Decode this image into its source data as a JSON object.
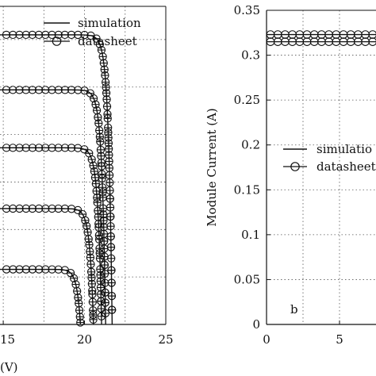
{
  "chart_data": [
    {
      "type": "line",
      "panel": "a",
      "xlabel": "(V)",
      "ylabel": "",
      "xlim": [
        14.8,
        25
      ],
      "ylim": [
        0,
        0.335
      ],
      "xticks": [
        15,
        20,
        25
      ],
      "xtick_labels": [
        "15",
        "20",
        "25"
      ],
      "grid": true,
      "legend": {
        "position": "top-right",
        "entries": [
          {
            "label": "simulation",
            "marker": "line"
          },
          {
            "label": "datasheet",
            "marker": "circle-line"
          }
        ]
      },
      "series": [
        {
          "Isc": 0.305,
          "Voc": 21.7,
          "k": 4.5
        },
        {
          "Isc": 0.247,
          "Voc": 21.3,
          "k": 4.5
        },
        {
          "Isc": 0.186,
          "Voc": 21.05,
          "k": 4.5
        },
        {
          "Isc": 0.122,
          "Voc": 20.55,
          "k": 4.5
        },
        {
          "Isc": 0.058,
          "Voc": 19.75,
          "k": 4.5
        }
      ]
    },
    {
      "type": "line",
      "panel": "b",
      "panel_label": "b",
      "xlabel": "",
      "ylabel": "Module Current (A)",
      "xlim": [
        0,
        10
      ],
      "ylim": [
        0,
        0.35
      ],
      "xticks": [
        0,
        5
      ],
      "xtick_labels": [
        "0",
        "5"
      ],
      "yticks": [
        0,
        0.05,
        0.1,
        0.15,
        0.2,
        0.25,
        0.3,
        0.35
      ],
      "ytick_labels": [
        "0",
        "0.05",
        "0.1",
        "0.15",
        "0.2",
        "0.25",
        "0.3",
        "0.35"
      ],
      "grid": true,
      "legend": {
        "position": "center-right",
        "entries": [
          {
            "label": "simulatio",
            "marker": "line"
          },
          {
            "label": "datasheet",
            "marker": "circle-line"
          }
        ]
      },
      "series": [
        {
          "values": 0.323
        },
        {
          "values": 0.315
        }
      ]
    }
  ]
}
